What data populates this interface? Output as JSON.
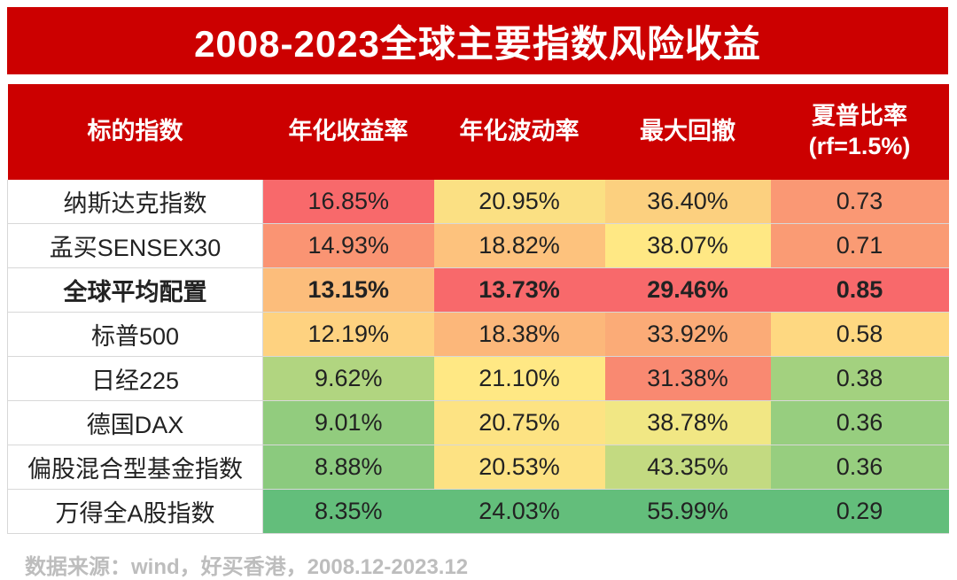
{
  "title": "2008-2023全球主要指数风险收益",
  "source": "数据来源：wind，好买香港，2008.12-2023.12",
  "chart_data": {
    "type": "table",
    "columns": [
      "标的指数",
      "年化收益率",
      "年化波动率",
      "最大回撤",
      "夏普比率\n(rf=1.5%)"
    ],
    "rows": [
      {
        "name": "纳斯达克指数",
        "annual_return": "16.85%",
        "annual_volatility": "20.95%",
        "max_drawdown": "36.40%",
        "sharpe": "0.73",
        "bold": false,
        "colors": [
          "#f8696b",
          "#fbe083",
          "#fcd07f",
          "#fa9874"
        ]
      },
      {
        "name": "孟买SENSEX30",
        "annual_return": "14.93%",
        "annual_volatility": "18.82%",
        "max_drawdown": "38.07%",
        "sharpe": "0.71",
        "bold": false,
        "colors": [
          "#fa9473",
          "#fdc27d",
          "#ffe884",
          "#fa9b74"
        ]
      },
      {
        "name": "全球平均配置",
        "annual_return": "13.15%",
        "annual_volatility": "13.73%",
        "max_drawdown": "29.46%",
        "sharpe": "0.85",
        "bold": true,
        "colors": [
          "#fcbd7b",
          "#f8696b",
          "#f8696b",
          "#f8696b"
        ]
      },
      {
        "name": "标普500",
        "annual_return": "12.19%",
        "annual_volatility": "18.38%",
        "max_drawdown": "33.92%",
        "sharpe": "0.58",
        "bold": false,
        "colors": [
          "#fed280",
          "#fcb77a",
          "#fbab77",
          "#fed881"
        ]
      },
      {
        "name": "日经225",
        "annual_return": "9.62%",
        "annual_volatility": "21.10%",
        "max_drawdown": "31.38%",
        "sharpe": "0.38",
        "bold": false,
        "colors": [
          "#b1d580",
          "#ffe884",
          "#f98971",
          "#a3d17f"
        ]
      },
      {
        "name": "德国DAX",
        "annual_return": "9.01%",
        "annual_volatility": "20.75%",
        "max_drawdown": "38.78%",
        "sharpe": "0.36",
        "bold": false,
        "colors": [
          "#92cc7e",
          "#fde383",
          "#f1e784",
          "#97ce7f"
        ]
      },
      {
        "name": "偏股混合型基金指数",
        "annual_return": "8.88%",
        "annual_volatility": "20.53%",
        "max_drawdown": "43.35%",
        "sharpe": "0.36",
        "bold": false,
        "colors": [
          "#8bca7e",
          "#fde283",
          "#c3da81",
          "#97ce7f"
        ]
      },
      {
        "name": "万得全A股指数",
        "annual_return": "8.35%",
        "annual_volatility": "24.03%",
        "max_drawdown": "55.99%",
        "sharpe": "0.29",
        "bold": false,
        "colors": [
          "#63be7b",
          "#63be7b",
          "#63be7b",
          "#63be7b"
        ]
      }
    ]
  }
}
